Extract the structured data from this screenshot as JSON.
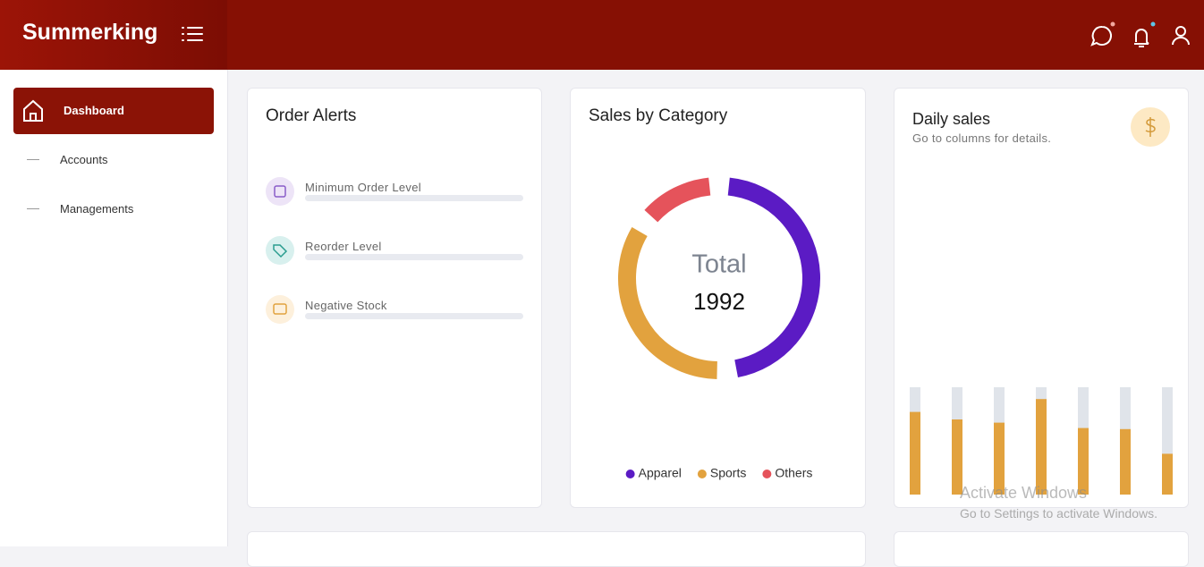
{
  "header": {
    "brand": "Summerking"
  },
  "sidebar": {
    "items": [
      "Dashboard",
      "Accounts",
      "Managements"
    ]
  },
  "order_alerts": {
    "title": "Order Alerts",
    "items": [
      "Minimum Order Level",
      "Reorder Level",
      "Negative Stock"
    ]
  },
  "chart_data": [
    {
      "type": "donut",
      "title": "Sales by Category",
      "center_label": "Total",
      "total": 1992,
      "categories": [
        "Apparel",
        "Sports",
        "Others"
      ],
      "values": [
        970,
        725,
        297
      ],
      "colors": [
        "#5b1bc4",
        "#e2a23e",
        "#e5535b"
      ]
    },
    {
      "type": "bar",
      "title": "Daily sales",
      "subtitle": "Go to columns for details.",
      "values": [
        77,
        70,
        67,
        89,
        62,
        61,
        38
      ],
      "color": "#e2a23e",
      "track_color": "#e0e4ea",
      "ylim": [
        0,
        100
      ]
    }
  ],
  "watermark": {
    "title": "Activate Windows",
    "text": "Go to Settings to activate Windows."
  }
}
